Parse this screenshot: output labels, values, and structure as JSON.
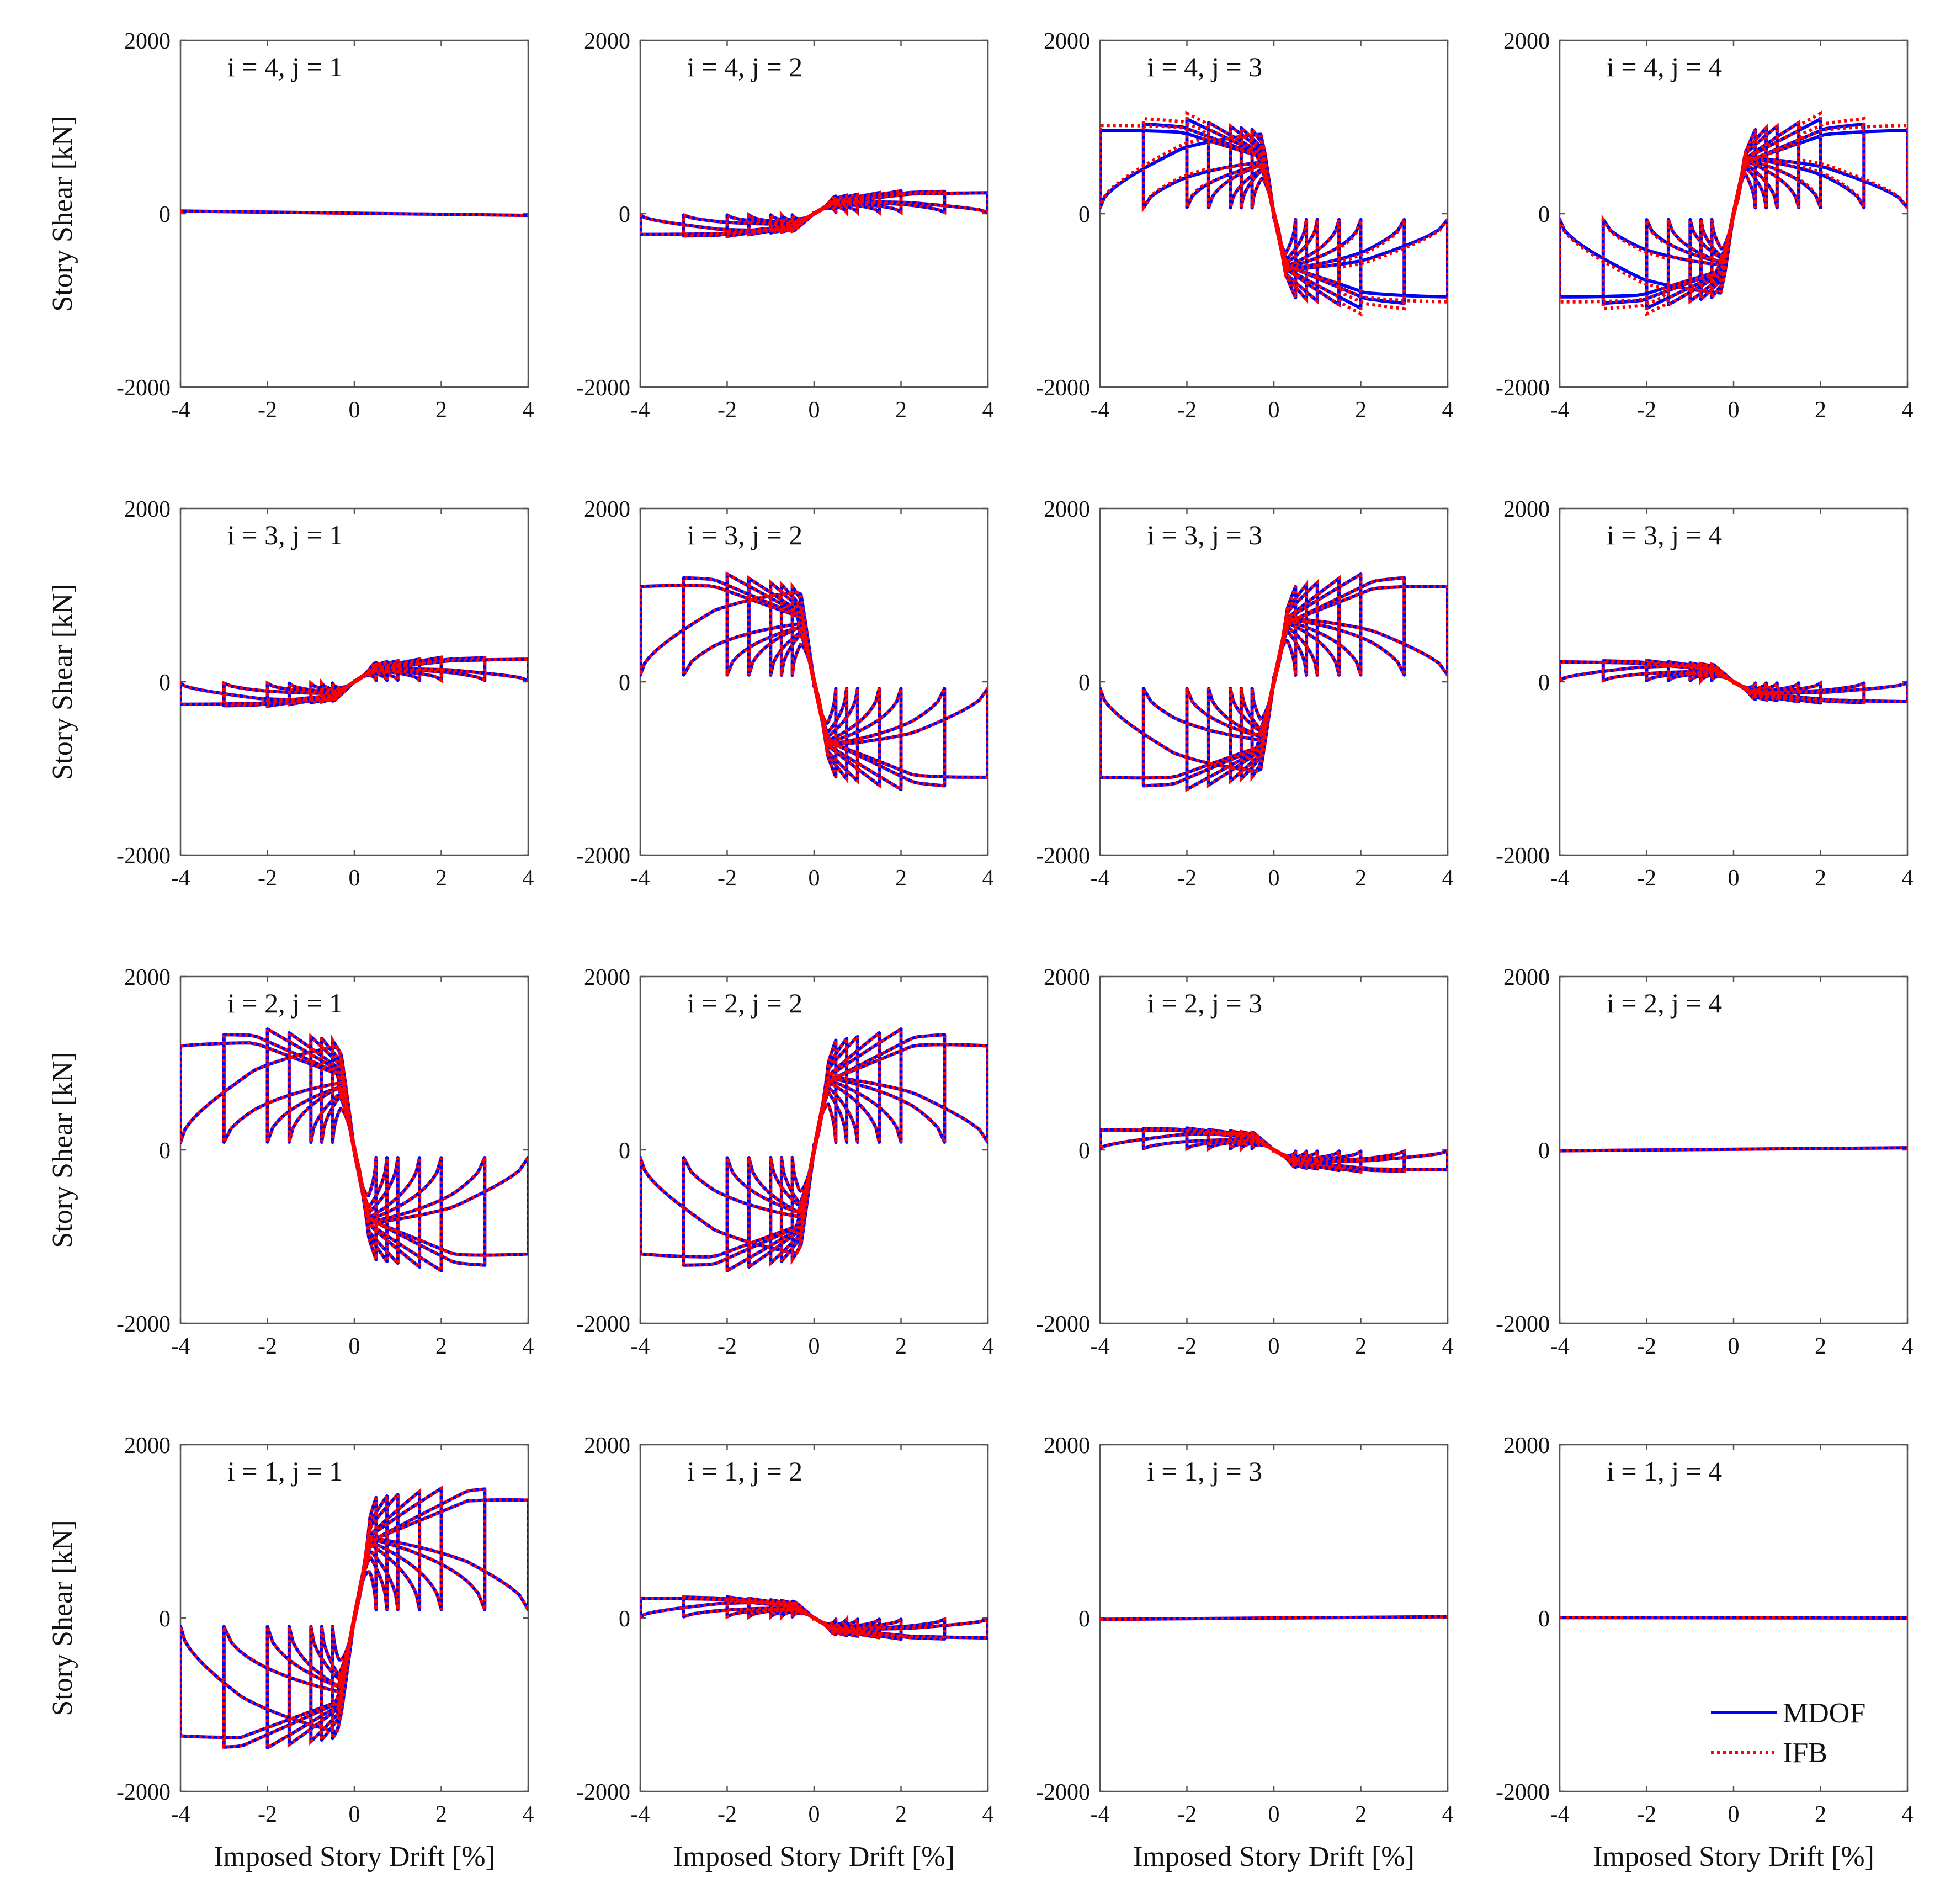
{
  "chart_data": {
    "type": "line",
    "description_grid": "4x4 small multiples of hysteresis loops",
    "xlabel": "Imposed Story Drift [%]",
    "ylabel": "Story Shear [kN]",
    "xlim": [
      -4,
      4
    ],
    "ylim": [
      -2000,
      2000
    ],
    "xticks": [
      -4,
      -2,
      0,
      2,
      4
    ],
    "yticks": [
      -2000,
      0,
      2000
    ],
    "legend": {
      "position": "bottom-right of last panel",
      "entries": [
        {
          "name": "MDOF",
          "color": "#0000ff",
          "style": "solid"
        },
        {
          "name": "IFB",
          "color": "#ff0000",
          "style": "dotted"
        }
      ]
    },
    "drift_amplitudes": [
      0.5,
      0.75,
      1.0,
      1.5,
      2.0,
      3.0,
      4.0
    ],
    "panels": [
      {
        "label": "i = 4, j = 1",
        "row": 0,
        "col": 0,
        "shape": "line",
        "ends": [
          30,
          -20
        ]
      },
      {
        "label": "i = 4, j = 2",
        "row": 0,
        "col": 1,
        "shape": "loop",
        "sign": 1,
        "yieldShear": 200,
        "elasticSlope": 450,
        "peakShear": 270,
        "peakDrift": 2.2,
        "endShear": 240
      },
      {
        "label": "i = 4, j = 3",
        "row": 0,
        "col": 2,
        "shape": "loop",
        "sign": -1,
        "yieldShear": 950,
        "elasticSlope": 3500,
        "peakShear": 1100,
        "peakDrift": 2.1,
        "endShear": 960,
        "ifbEndShear": 1100
      },
      {
        "label": "i = 4, j = 4",
        "row": 0,
        "col": 3,
        "shape": "loop",
        "sign": 1,
        "yieldShear": 950,
        "elasticSlope": 3500,
        "peakShear": 1100,
        "peakDrift": 2.1,
        "endShear": 960,
        "ifbEndShear": 1100
      },
      {
        "label": "i = 3, j = 1",
        "row": 1,
        "col": 0,
        "shape": "loop",
        "sign": 1,
        "yieldShear": 220,
        "elasticSlope": 500,
        "peakShear": 290,
        "peakDrift": 2.2,
        "endShear": 260
      },
      {
        "label": "i = 3, j = 2",
        "row": 1,
        "col": 1,
        "shape": "loop",
        "sign": -1,
        "yieldShear": 1080,
        "elasticSlope": 3500,
        "peakShear": 1270,
        "peakDrift": 2.3,
        "endShear": 1100
      },
      {
        "label": "i = 3, j = 3",
        "row": 1,
        "col": 2,
        "shape": "loop",
        "sign": 1,
        "yieldShear": 1080,
        "elasticSlope": 3500,
        "peakShear": 1270,
        "peakDrift": 2.3,
        "endShear": 1100
      },
      {
        "label": "i = 3, j = 4",
        "row": 1,
        "col": 3,
        "shape": "loop",
        "sign": -1,
        "yieldShear": 200,
        "elasticSlope": 450,
        "peakShear": 250,
        "peakDrift": 2.2,
        "endShear": 230
      },
      {
        "label": "i = 2, j = 1",
        "row": 2,
        "col": 0,
        "shape": "loop",
        "sign": -1,
        "yieldShear": 1250,
        "elasticSlope": 3800,
        "peakShear": 1420,
        "peakDrift": 2.3,
        "endShear": 1200
      },
      {
        "label": "i = 2, j = 2",
        "row": 2,
        "col": 1,
        "shape": "loop",
        "sign": 1,
        "yieldShear": 1250,
        "elasticSlope": 3800,
        "peakShear": 1420,
        "peakDrift": 2.3,
        "endShear": 1200
      },
      {
        "label": "i = 2, j = 3",
        "row": 2,
        "col": 2,
        "shape": "loop",
        "sign": -1,
        "yieldShear": 200,
        "elasticSlope": 450,
        "peakShear": 260,
        "peakDrift": 2.2,
        "endShear": 230
      },
      {
        "label": "i = 2, j = 4",
        "row": 2,
        "col": 3,
        "shape": "line",
        "ends": [
          -10,
          25
        ]
      },
      {
        "label": "i = 1, j = 1",
        "row": 3,
        "col": 0,
        "shape": "loop",
        "sign": 1,
        "yieldShear": 1380,
        "elasticSlope": 3800,
        "peakShear": 1540,
        "peakDrift": 2.6,
        "endShear": 1360
      },
      {
        "label": "i = 1, j = 2",
        "row": 3,
        "col": 1,
        "shape": "loop",
        "sign": -1,
        "yieldShear": 190,
        "elasticSlope": 450,
        "peakShear": 250,
        "peakDrift": 2.2,
        "endShear": 230
      },
      {
        "label": "i = 1, j = 3",
        "row": 3,
        "col": 2,
        "shape": "line",
        "ends": [
          -15,
          15
        ]
      },
      {
        "label": "i = 1, j = 4",
        "row": 3,
        "col": 3,
        "shape": "line",
        "ends": [
          5,
          0
        ]
      }
    ]
  }
}
